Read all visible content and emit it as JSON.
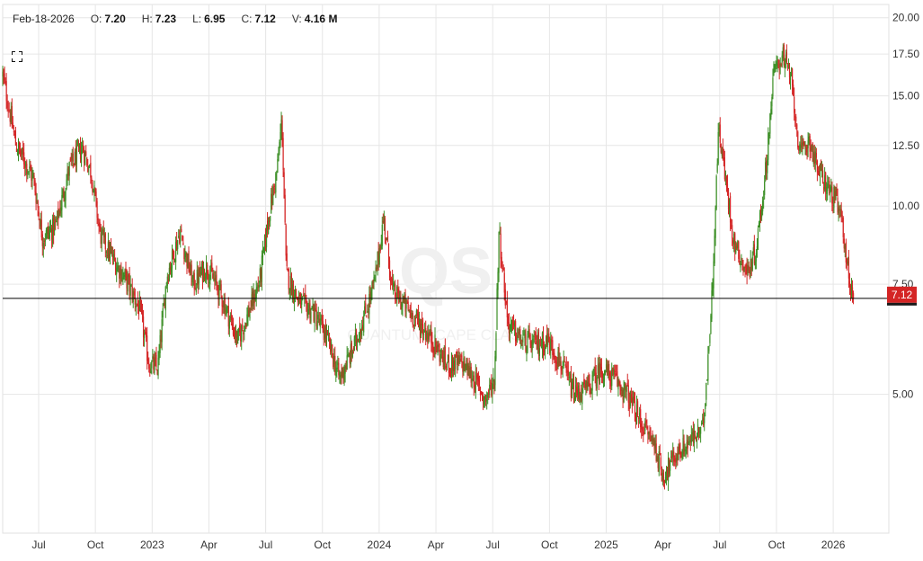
{
  "header": {
    "date": "Feb-18-2026",
    "open_label": "O:",
    "open": "7.20",
    "high_label": "H:",
    "high": "7.23",
    "low_label": "L:",
    "low": "6.95",
    "close_label": "C:",
    "close": "7.12",
    "volume_label": "V:",
    "volume": "4.16 M"
  },
  "watermark": {
    "ticker": "QS",
    "name": "QUANTUMSCAPE CLASS A"
  },
  "icons": {
    "expand": "fullscreen-icon"
  },
  "colors": {
    "up": "#3c8f26",
    "down": "#d42525",
    "last_price_bg": "#d42525",
    "grid": "#e6e6e6",
    "price_line": "#000000"
  },
  "chart_data": {
    "type": "candlestick",
    "y_scale": "log",
    "ylim": [
      3.0,
      21.0
    ],
    "y_ticks": [
      "5.00",
      "7.50",
      "10.00",
      "12.50",
      "15.00",
      "17.50",
      "20.00"
    ],
    "x_ticks": [
      "Jul",
      "Oct",
      "2023",
      "Apr",
      "Jul",
      "Oct",
      "2024",
      "Apr",
      "Jul",
      "Oct",
      "2025",
      "Apr",
      "Jul",
      "Oct",
      "2026"
    ],
    "last_price": "7.12",
    "closes": [
      [
        0,
        16.2
      ],
      [
        0.015,
        12.5
      ],
      [
        0.025,
        11.8
      ],
      [
        0.035,
        11.0
      ],
      [
        0.045,
        8.9
      ],
      [
        0.06,
        9.3
      ],
      [
        0.075,
        11.5
      ],
      [
        0.09,
        12.4
      ],
      [
        0.1,
        11.3
      ],
      [
        0.11,
        9.0
      ],
      [
        0.125,
        8.2
      ],
      [
        0.14,
        7.6
      ],
      [
        0.155,
        6.8
      ],
      [
        0.165,
        5.6
      ],
      [
        0.175,
        5.5
      ],
      [
        0.185,
        7.7
      ],
      [
        0.2,
        9.1
      ],
      [
        0.215,
        7.5
      ],
      [
        0.23,
        8.0
      ],
      [
        0.245,
        7.3
      ],
      [
        0.265,
        6.1
      ],
      [
        0.28,
        6.9
      ],
      [
        0.29,
        7.6
      ],
      [
        0.3,
        9.6
      ],
      [
        0.31,
        11.5
      ],
      [
        0.315,
        13.8
      ],
      [
        0.32,
        7.8
      ],
      [
        0.335,
        7.0
      ],
      [
        0.35,
        6.8
      ],
      [
        0.365,
        6.2
      ],
      [
        0.375,
        5.6
      ],
      [
        0.38,
        5.3
      ],
      [
        0.395,
        5.9
      ],
      [
        0.41,
        6.8
      ],
      [
        0.42,
        7.6
      ],
      [
        0.43,
        9.6
      ],
      [
        0.44,
        7.3
      ],
      [
        0.455,
        6.9
      ],
      [
        0.47,
        6.5
      ],
      [
        0.485,
        6.1
      ],
      [
        0.5,
        5.6
      ],
      [
        0.52,
        5.6
      ],
      [
        0.535,
        5.2
      ],
      [
        0.545,
        4.9
      ],
      [
        0.555,
        5.3
      ],
      [
        0.56,
        9.2
      ],
      [
        0.57,
        6.5
      ],
      [
        0.585,
        6.1
      ],
      [
        0.6,
        6.0
      ],
      [
        0.615,
        6.1
      ],
      [
        0.63,
        5.6
      ],
      [
        0.645,
        5.0
      ],
      [
        0.66,
        5.1
      ],
      [
        0.675,
        5.5
      ],
      [
        0.69,
        5.3
      ],
      [
        0.705,
        5.0
      ],
      [
        0.72,
        4.5
      ],
      [
        0.735,
        4.2
      ],
      [
        0.745,
        3.7
      ],
      [
        0.76,
        4.0
      ],
      [
        0.775,
        4.2
      ],
      [
        0.79,
        4.4
      ],
      [
        0.795,
        5.5
      ],
      [
        0.8,
        7.0
      ],
      [
        0.808,
        13.5
      ],
      [
        0.815,
        11.2
      ],
      [
        0.825,
        8.8
      ],
      [
        0.84,
        7.8
      ],
      [
        0.85,
        8.5
      ],
      [
        0.86,
        11.0
      ],
      [
        0.87,
        16.3
      ],
      [
        0.88,
        17.5
      ],
      [
        0.89,
        15.8
      ],
      [
        0.9,
        12.0
      ],
      [
        0.91,
        12.8
      ],
      [
        0.92,
        11.4
      ],
      [
        0.93,
        10.8
      ],
      [
        0.94,
        10.2
      ],
      [
        0.948,
        9.3
      ],
      [
        0.955,
        7.6
      ],
      [
        0.96,
        7.12
      ]
    ]
  }
}
